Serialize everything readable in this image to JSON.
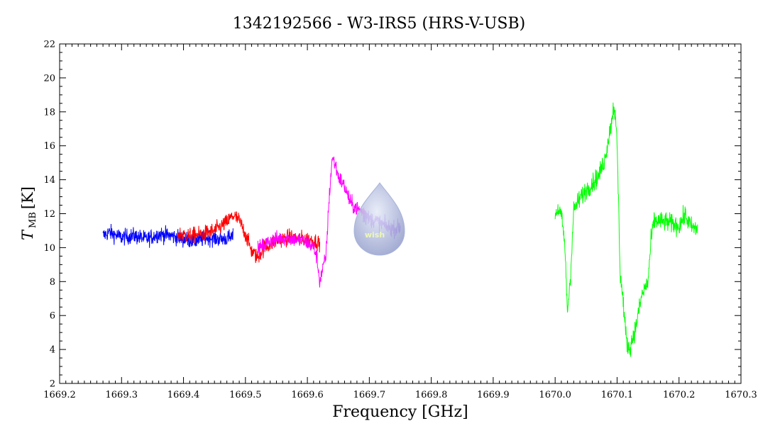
{
  "chart_data": {
    "type": "line",
    "title": "1342192566 - W3-IRS5 (HRS-V-USB)",
    "xlabel": "Frequency [GHz]",
    "ylabel": "T",
    "ylabel_sub": "MB",
    "ylabel_unit": "[K]",
    "xlim": [
      1669.2,
      1670.3
    ],
    "ylim": [
      2,
      22
    ],
    "xticks": [
      1669.2,
      1669.3,
      1669.4,
      1669.5,
      1669.6,
      1669.7,
      1669.8,
      1669.9,
      1670.0,
      1670.1,
      1670.2,
      1670.3
    ],
    "xtick_labels": [
      "1669.2",
      "1669.3",
      "1669.4",
      "1669.5",
      "1669.6",
      "1669.7",
      "1669.8",
      "1669.9",
      "1670.0",
      "1670.1",
      "1670.2",
      "1670.3"
    ],
    "yticks": [
      2,
      4,
      6,
      8,
      10,
      12,
      14,
      16,
      18,
      20,
      22
    ],
    "ytick_labels": [
      "2",
      "4",
      "6",
      "8",
      "10",
      "12",
      "14",
      "16",
      "18",
      "20",
      "22"
    ],
    "grid": false,
    "series": [
      {
        "color": "#0000ff",
        "x": [
          1669.27,
          1669.28,
          1669.3,
          1669.32,
          1669.34,
          1669.36,
          1669.38,
          1669.4,
          1669.42,
          1669.44,
          1669.46,
          1669.48
        ],
        "y": [
          10.7,
          10.9,
          10.6,
          10.7,
          10.5,
          10.8,
          10.7,
          10.5,
          10.4,
          10.6,
          10.5,
          10.6
        ]
      },
      {
        "color": "#ff0000",
        "x": [
          1669.39,
          1669.41,
          1669.43,
          1669.45,
          1669.47,
          1669.48,
          1669.49,
          1669.5,
          1669.51,
          1669.52,
          1669.53,
          1669.55,
          1669.57,
          1669.6,
          1669.62
        ],
        "y": [
          10.8,
          10.7,
          10.8,
          11.0,
          11.5,
          11.9,
          11.6,
          10.8,
          9.8,
          9.4,
          10.0,
          10.4,
          10.6,
          10.5,
          10.3
        ]
      },
      {
        "color": "#ff00ff",
        "x": [
          1669.52,
          1669.54,
          1669.56,
          1669.58,
          1669.6,
          1669.61,
          1669.615,
          1669.62,
          1669.63,
          1669.635,
          1669.64,
          1669.645,
          1669.65,
          1669.66,
          1669.67,
          1669.68,
          1669.69,
          1669.7
        ],
        "y": [
          9.9,
          10.4,
          10.6,
          10.5,
          10.3,
          10.0,
          9.5,
          8.0,
          9.5,
          12.8,
          15.3,
          14.9,
          14.2,
          13.6,
          12.6,
          12.3,
          12.1,
          11.9
        ]
      },
      {
        "color": "#a040ff",
        "x": [
          1669.69,
          1669.7,
          1669.71,
          1669.72,
          1669.73,
          1669.74,
          1669.75
        ],
        "y": [
          11.9,
          11.7,
          11.6,
          11.4,
          11.2,
          11.1,
          11.2
        ]
      },
      {
        "color": "#00ff00",
        "x": [
          1670.0,
          1670.005,
          1670.01,
          1670.015,
          1670.02,
          1670.025,
          1670.03,
          1670.04,
          1670.05,
          1670.06,
          1670.07,
          1670.08,
          1670.09,
          1670.095,
          1670.1,
          1670.105,
          1670.11,
          1670.115,
          1670.12,
          1670.13,
          1670.14,
          1670.15,
          1670.155,
          1670.16,
          1670.18,
          1670.2,
          1670.21,
          1670.22,
          1670.23
        ],
        "y": [
          12.0,
          12.3,
          11.8,
          10.5,
          6.2,
          8.5,
          12.2,
          12.9,
          13.4,
          13.8,
          14.2,
          15.2,
          17.2,
          18.5,
          16.2,
          8.5,
          6.8,
          4.5,
          4.0,
          5.3,
          7.2,
          8.0,
          10.5,
          11.6,
          11.5,
          11.3,
          11.9,
          11.2,
          11.1
        ]
      }
    ]
  },
  "watermark": {
    "text": "wish",
    "shape": "droplet-icon",
    "color": "#aab4d8"
  }
}
